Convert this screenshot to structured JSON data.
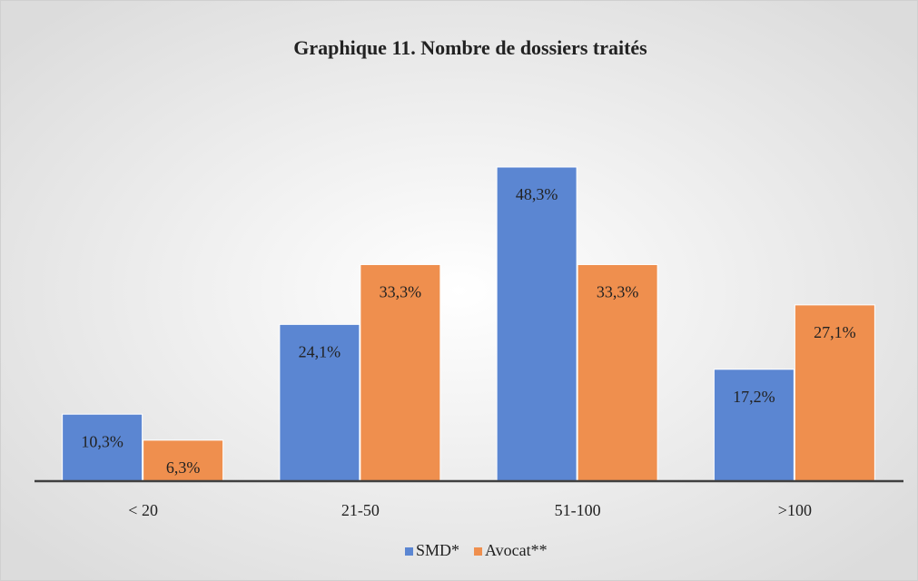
{
  "chart_data": {
    "type": "bar",
    "title": "Graphique 11. Nombre de dossiers traités",
    "categories": [
      "< 20",
      "21-50",
      "51-100",
      ">100"
    ],
    "series": [
      {
        "name": "SMD*",
        "color": "#5b86d2",
        "values": [
          10.3,
          24.1,
          48.3,
          17.2
        ],
        "value_labels": [
          "10,3%",
          "24,1%",
          "48,3%",
          "17,2%"
        ]
      },
      {
        "name": "Avocat**",
        "color": "#ef8f4e",
        "values": [
          6.3,
          33.3,
          33.3,
          27.1
        ],
        "value_labels": [
          "6,3%",
          "33,3%",
          "33,3%",
          "27,1%"
        ]
      }
    ]
  }
}
